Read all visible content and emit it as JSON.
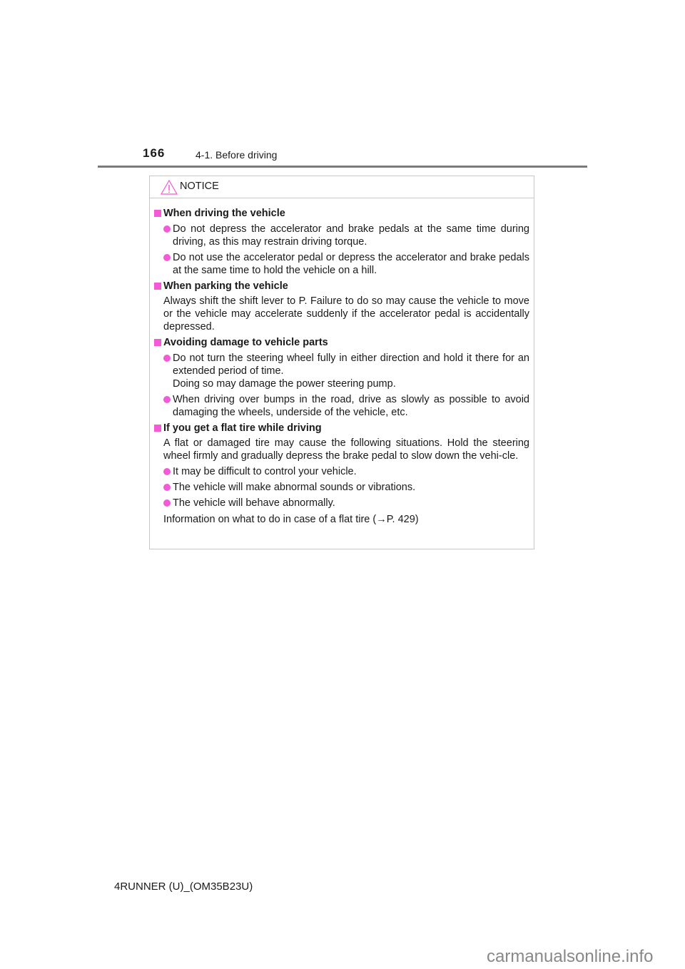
{
  "header": {
    "page_number": "166",
    "section": "4-1. Before driving"
  },
  "notice": {
    "title": "NOTICE",
    "icon": "warning-triangle-icon",
    "accent_color": "#f25ad6",
    "blocks": [
      {
        "heading": "When driving the vehicle",
        "bullets": [
          "Do not depress the accelerator and brake pedals at the same time during driving, as this may restrain driving torque.",
          "Do not use the accelerator pedal or depress the accelerator and brake pedals at the same time to hold the vehicle on a hill."
        ]
      },
      {
        "heading": "When parking the vehicle",
        "text": "Always shift the shift lever to P. Failure to do so may cause the vehicle to move or the vehicle may accelerate suddenly if the accelerator pedal is accidentally depressed."
      },
      {
        "heading": "Avoiding damage to vehicle parts",
        "bullets": [
          "Do not turn the steering wheel fully in either direction and hold it there for an extended period of time.",
          "When driving over bumps in the road, drive as slowly as possible to avoid damaging the wheels, underside of the vehicle, etc."
        ],
        "bullet1_extra": "Doing so may damage the power steering pump."
      },
      {
        "heading": "If you get a flat tire while driving",
        "text": "A flat or damaged tire may cause the following situations. Hold the steering wheel firmly and gradually depress the brake pedal to slow down the vehi-cle.",
        "bullets": [
          "It may be difficult to control your vehicle.",
          "The vehicle will make abnormal sounds or vibrations.",
          "The vehicle will behave abnormally."
        ],
        "footer_text": "Information on what to do in case of a flat tire (→P. 429)"
      }
    ]
  },
  "footer": {
    "model": "4RUNNER (U)_(OM35B23U)"
  },
  "watermark": "carmanualsonline.info"
}
